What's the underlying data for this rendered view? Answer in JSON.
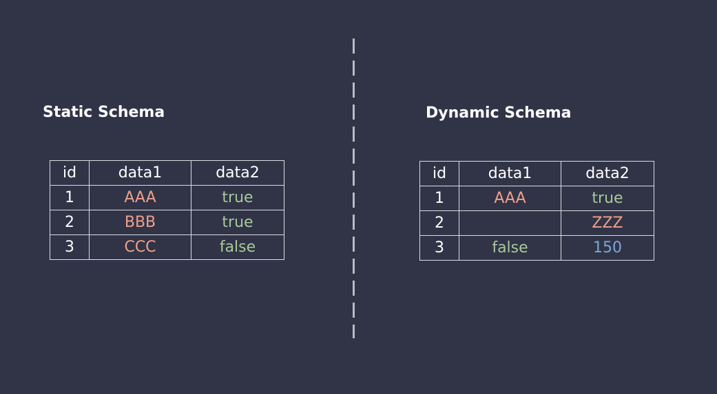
{
  "colors": {
    "background": "#313447",
    "string_value": "#f0a08c",
    "boolean_value": "#a8c99a",
    "number_value": "#7aa7d8",
    "grid": "#dcdde3"
  },
  "left": {
    "title": "Static Schema",
    "headers": [
      "id",
      "data1",
      "data2"
    ],
    "rows": [
      [
        "1",
        "AAA",
        "true"
      ],
      [
        "2",
        "BBB",
        "true"
      ],
      [
        "3",
        "CCC",
        "false"
      ]
    ]
  },
  "right": {
    "title": "Dynamic Schema",
    "headers": [
      "id",
      "data1",
      "data2"
    ],
    "rows": [
      [
        "1",
        "AAA",
        "true"
      ],
      [
        "2",
        "",
        "ZZZ"
      ],
      [
        "3",
        "false",
        "150"
      ]
    ]
  }
}
